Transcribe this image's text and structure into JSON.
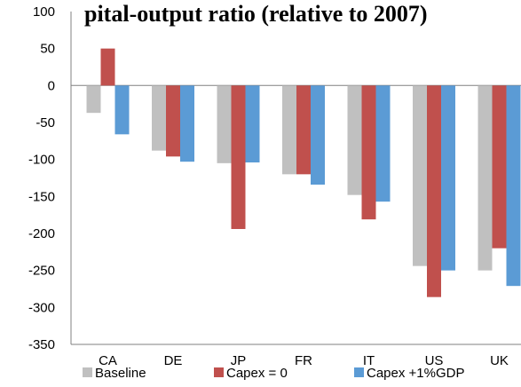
{
  "chart_data": {
    "type": "bar",
    "title": "pital-output ratio (relative to 2007)",
    "xlabel": "",
    "ylabel": "",
    "ylim": [
      -350,
      100
    ],
    "yticks": [
      100,
      50,
      0,
      -50,
      -100,
      -150,
      -200,
      -250,
      -300,
      -350
    ],
    "categories": [
      "CA",
      "DE",
      "JP",
      "FR",
      "IT",
      "US",
      "UK"
    ],
    "series": [
      {
        "name": "Baseline",
        "color": "#c0c0c0",
        "values": [
          -37,
          -88,
          -105,
          -120,
          -148,
          -244,
          -250
        ]
      },
      {
        "name": "Capex = 0",
        "color": "#c0504d",
        "values": [
          50,
          -96,
          -194,
          -120,
          -181,
          -286,
          -220
        ]
      },
      {
        "name": "Capex +1%GDP",
        "color": "#5b9bd5",
        "values": [
          -66,
          -103,
          -104,
          -134,
          -157,
          -250,
          -271
        ]
      }
    ],
    "grid": false,
    "legend": "bottom"
  }
}
